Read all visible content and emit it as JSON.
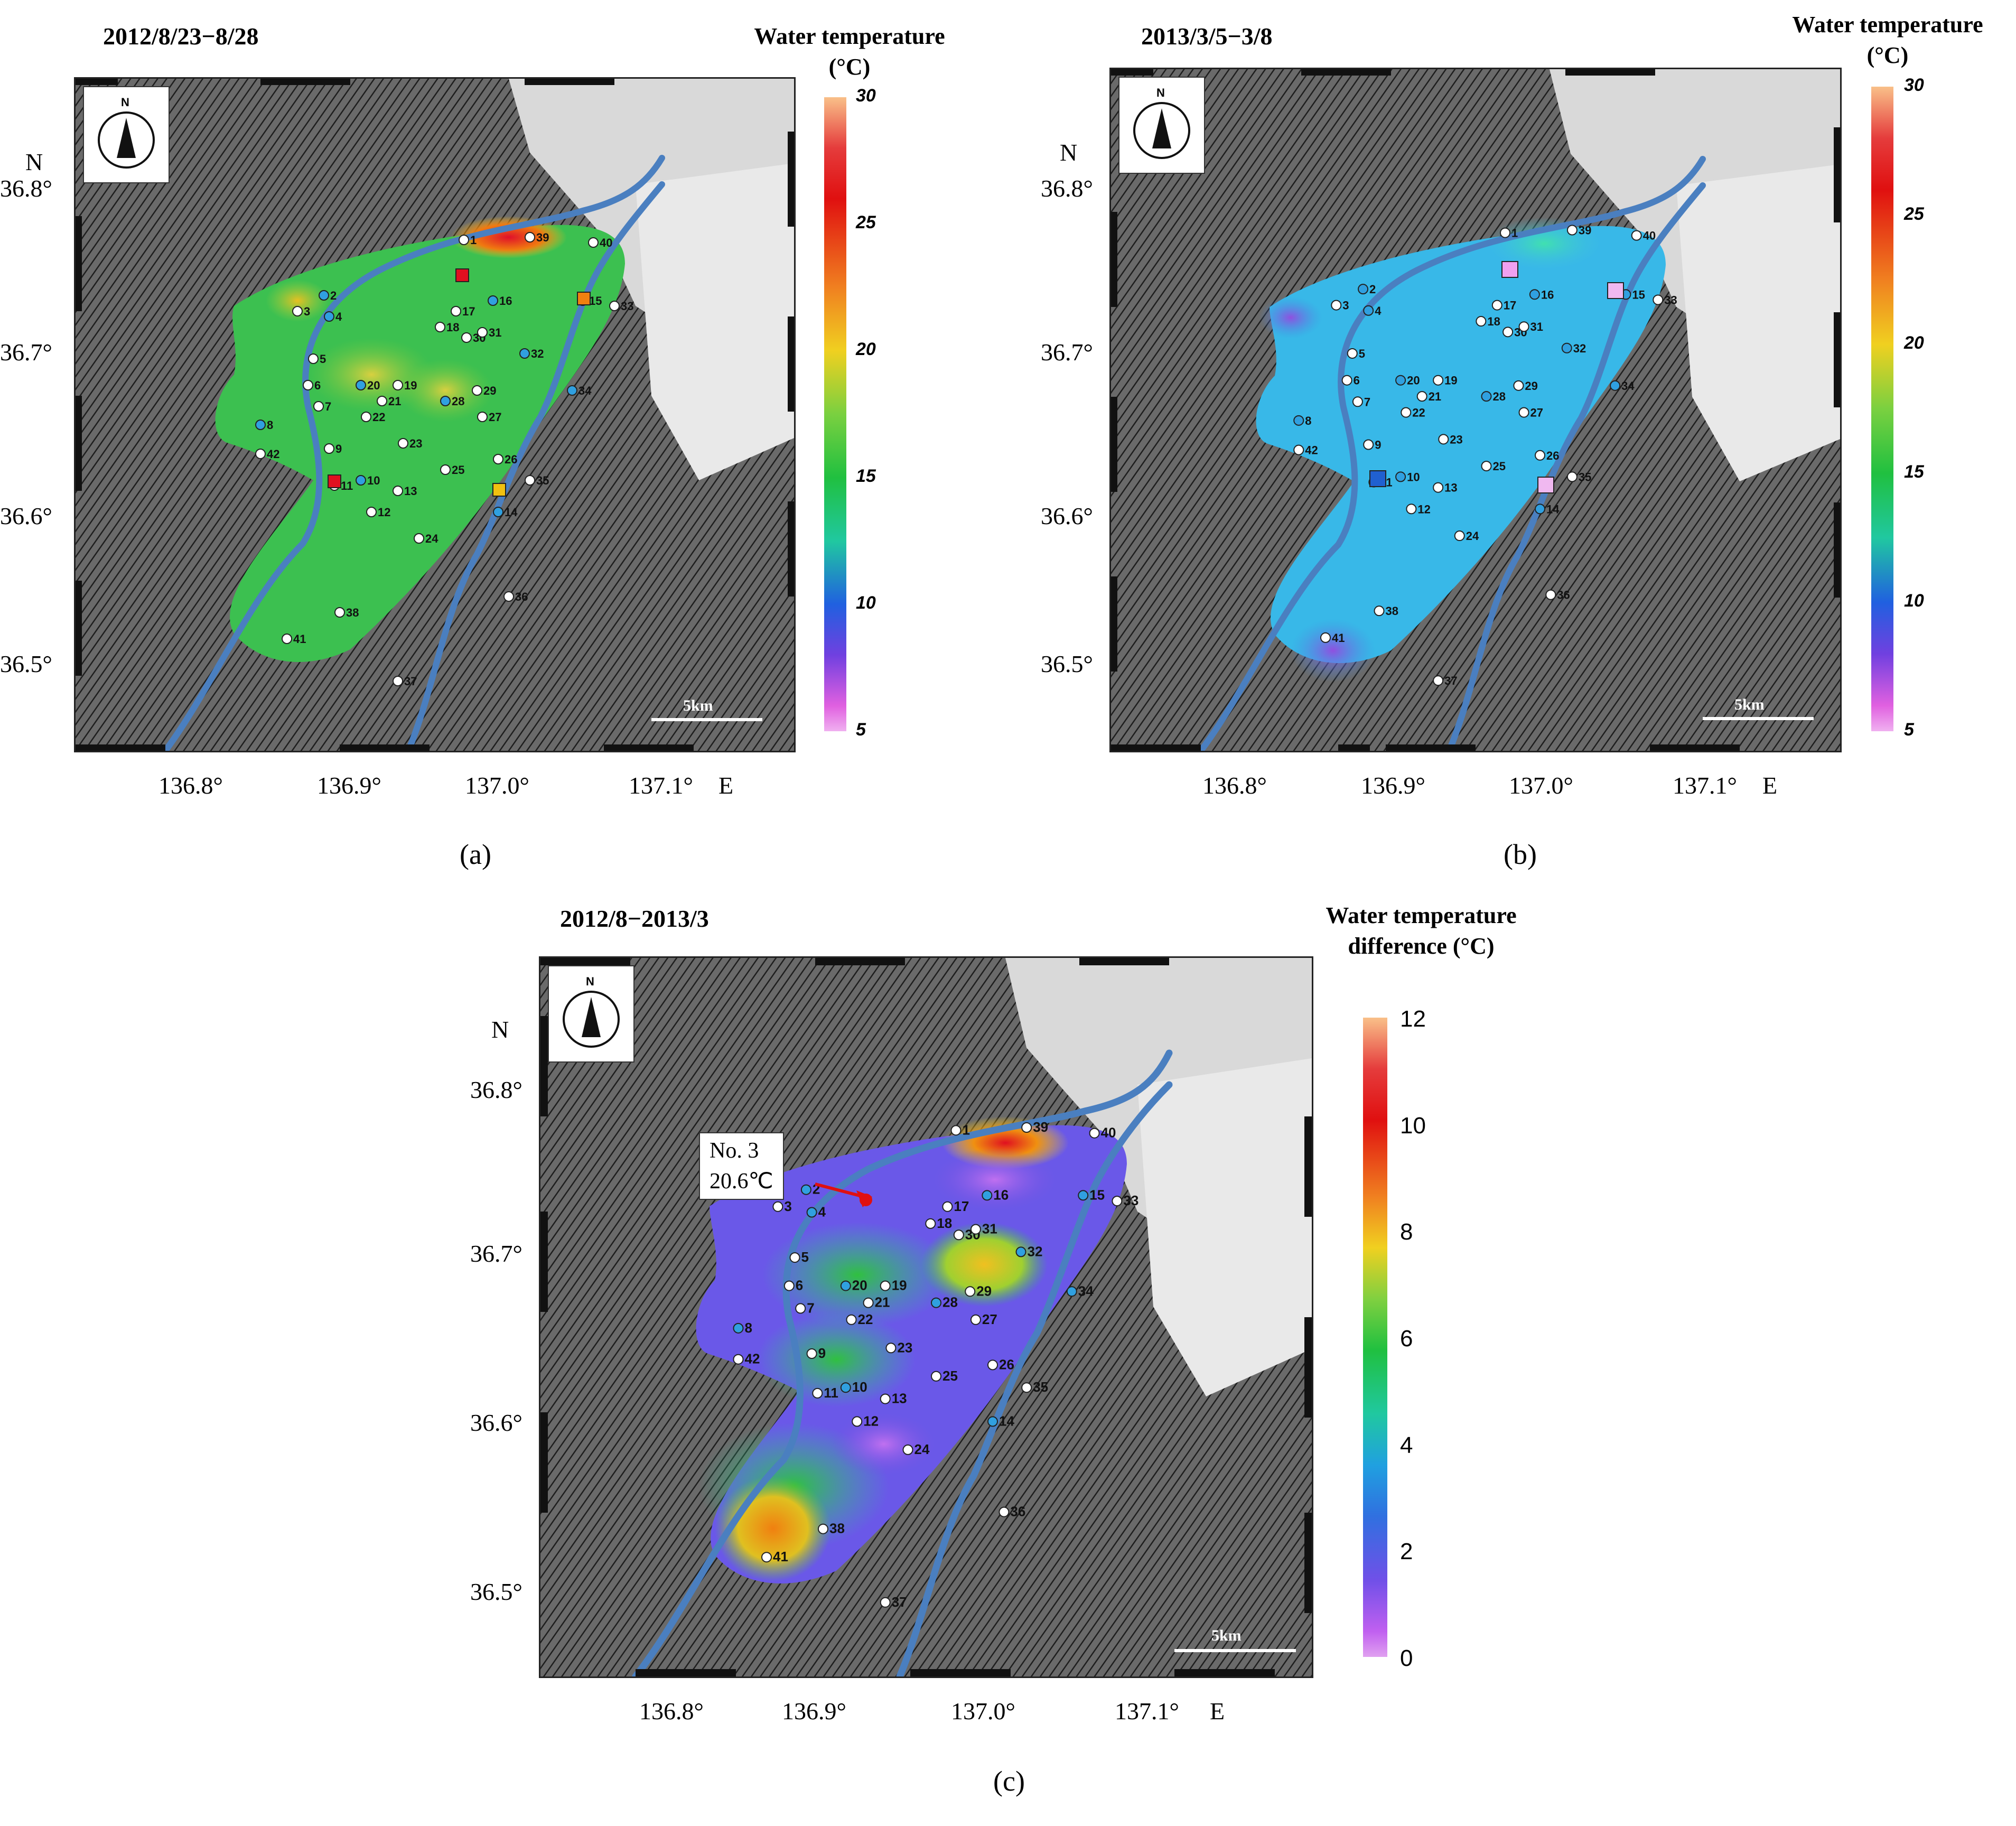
{
  "panels": {
    "a": {
      "title": "2012/8/23−8/28",
      "letter": "(a)",
      "legend_title_line1": "Water temperature",
      "legend_title_line2": "(°C)",
      "colorbar_ticks": [
        "30",
        "25",
        "20",
        "15",
        "10",
        "5"
      ]
    },
    "b": {
      "title": "2013/3/5−3/8",
      "letter": "(b)",
      "legend_title_line1": "Water temperature",
      "legend_title_line2": "(°C)",
      "colorbar_ticks": [
        "30",
        "25",
        "20",
        "15",
        "10",
        "5"
      ]
    },
    "c": {
      "title": "2012/8−2013/3",
      "letter": "(c)",
      "legend_title_line1": "Water temperature",
      "legend_title_line2": "difference (°C)",
      "colorbar_ticks": [
        "12",
        "10",
        "8",
        "6",
        "4",
        "2",
        "0"
      ],
      "callout_line1": "No. 3",
      "callout_line2": "20.6℃"
    }
  },
  "axes": {
    "north_label": "N",
    "east_label": "E",
    "lat_ticks": [
      "36.8°",
      "36.7°",
      "36.6°",
      "36.5°"
    ],
    "lon_ticks": [
      "136.8°",
      "136.9°",
      "137.0°",
      "137.1°"
    ]
  },
  "compass_label": "N",
  "scale_bar_label": "5km",
  "colors": {
    "river": "#4a7fc0",
    "land_shade": "#555555",
    "callout_arrow": "#e01010"
  },
  "stations": [
    "1",
    "2",
    "3",
    "4",
    "5",
    "6",
    "7",
    "8",
    "9",
    "10",
    "11",
    "12",
    "13",
    "14",
    "15",
    "16",
    "17",
    "18",
    "19",
    "20",
    "21",
    "22",
    "23",
    "24",
    "25",
    "26",
    "27",
    "28",
    "29",
    "30",
    "31",
    "32",
    "33",
    "34",
    "35",
    "36",
    "37",
    "38",
    "39",
    "40",
    "41",
    "42"
  ],
  "depth_contours": [
    "10",
    "20",
    "30",
    "40",
    "50",
    "60",
    "70",
    "80",
    "90",
    "100",
    "120"
  ]
}
